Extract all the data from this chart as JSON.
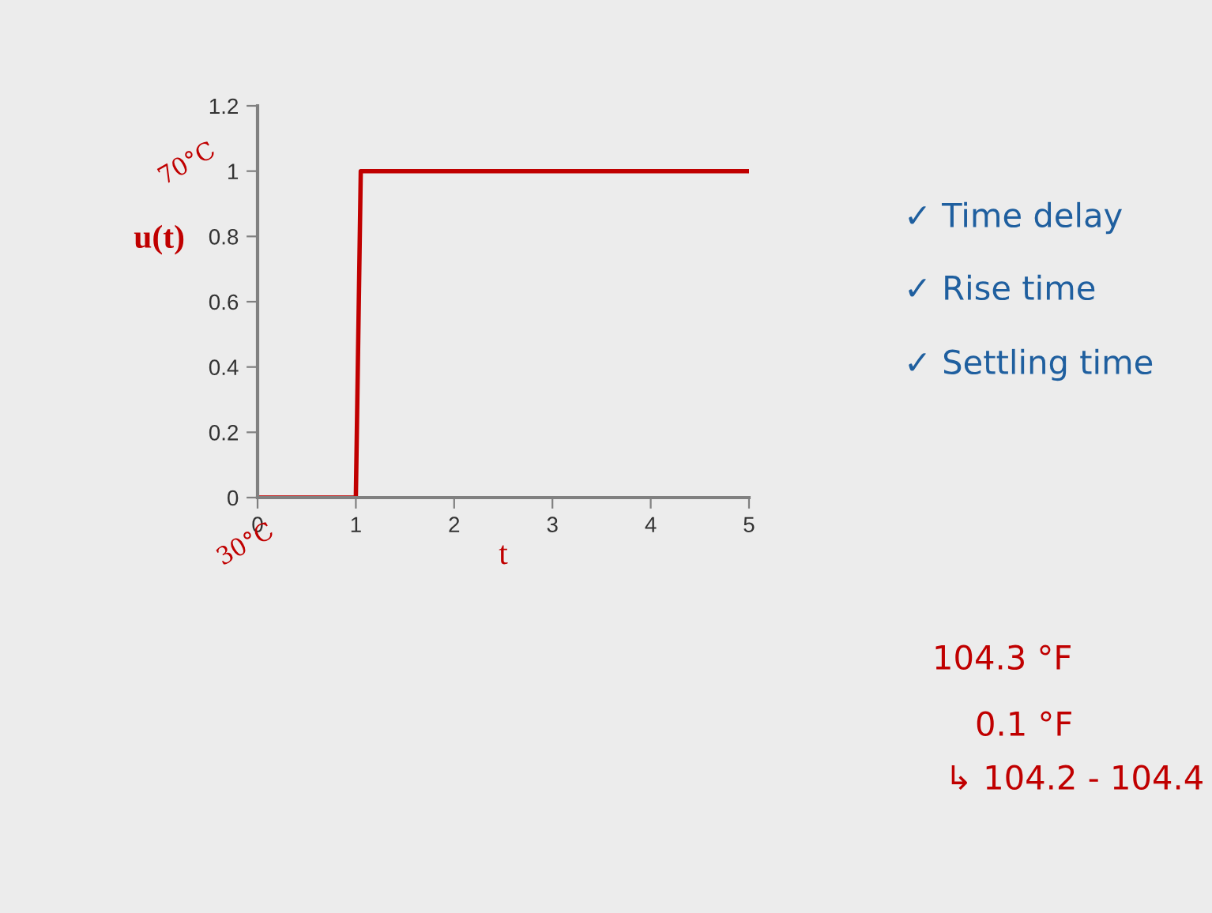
{
  "chart_data": {
    "type": "line",
    "xlabel": "t",
    "ylabel": "u(t)",
    "x": [
      0,
      1,
      1.05,
      5
    ],
    "series": [
      {
        "color": "#c00000",
        "values": [
          0,
          0,
          1,
          1
        ]
      }
    ],
    "xlim": [
      0,
      5
    ],
    "xticks": [
      0,
      1,
      2,
      3,
      4,
      5
    ],
    "ylim": [
      0,
      1.2
    ],
    "yticks": [
      0,
      0.2,
      0.4,
      0.6,
      0.8,
      1,
      1.2
    ],
    "grid": false,
    "legend": false,
    "marker": "none",
    "line_style": "solid",
    "annotations": [
      "70°C",
      "30°C",
      "✓ Time delay",
      "✓ Rise time",
      "✓ Settling time",
      "104.3 °F",
      "0.1 °F",
      "↳ 104.2 - 104.4"
    ]
  }
}
